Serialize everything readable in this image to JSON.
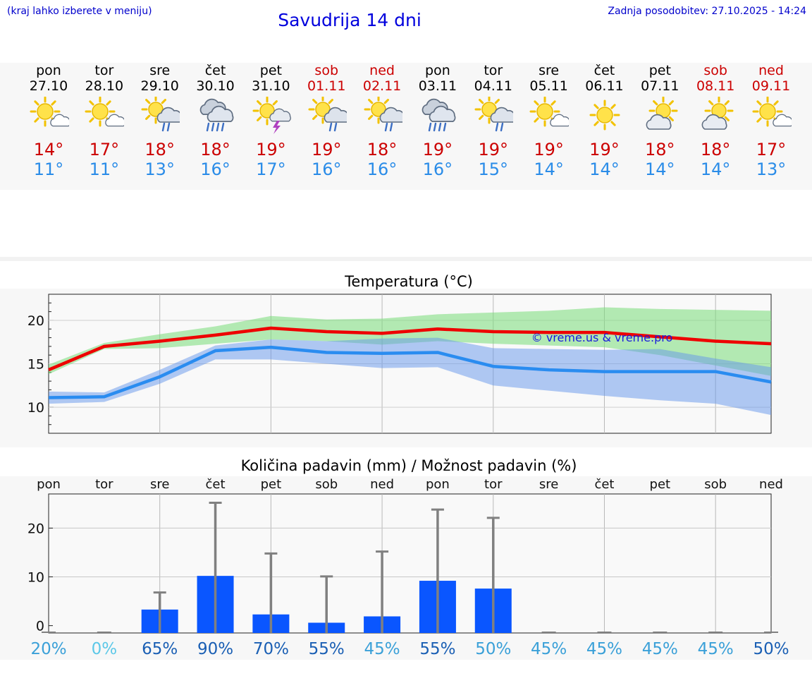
{
  "header": {
    "menu_note": "(kraj lahko izberete v meniju)",
    "title": "Savudrija 14 dni",
    "last_update": "Zadnja posodobitev: 27.10.2025 - 14:24"
  },
  "colors": {
    "max": "#cc0000",
    "min": "#2a8ce8",
    "link": "#0000cc"
  },
  "days": [
    {
      "name": "pon",
      "date": "27.10",
      "icon": "sun-cloud-icon",
      "tmax": "14°",
      "tmin": "11°",
      "weekend": false
    },
    {
      "name": "tor",
      "date": "28.10",
      "icon": "sun-cloud-icon",
      "tmax": "17°",
      "tmin": "11°",
      "weekend": false
    },
    {
      "name": "sre",
      "date": "29.10",
      "icon": "sun-rain-icon",
      "tmax": "18°",
      "tmin": "13°",
      "weekend": false
    },
    {
      "name": "čet",
      "date": "30.10",
      "icon": "rain-cloud-icon",
      "tmax": "18°",
      "tmin": "16°",
      "weekend": false
    },
    {
      "name": "pet",
      "date": "31.10",
      "icon": "sun-thunder-icon",
      "tmax": "19°",
      "tmin": "17°",
      "weekend": false
    },
    {
      "name": "sob",
      "date": "01.11",
      "icon": "sun-rain-icon",
      "tmax": "19°",
      "tmin": "16°",
      "weekend": true
    },
    {
      "name": "ned",
      "date": "02.11",
      "icon": "sun-rain-icon",
      "tmax": "18°",
      "tmin": "16°",
      "weekend": true
    },
    {
      "name": "pon",
      "date": "03.11",
      "icon": "rain-cloud-icon",
      "tmax": "19°",
      "tmin": "16°",
      "weekend": false
    },
    {
      "name": "tor",
      "date": "04.11",
      "icon": "sun-rain-icon",
      "tmax": "19°",
      "tmin": "15°",
      "weekend": false
    },
    {
      "name": "sre",
      "date": "05.11",
      "icon": "sun-cloud-icon",
      "tmax": "19°",
      "tmin": "14°",
      "weekend": false
    },
    {
      "name": "čet",
      "date": "06.11",
      "icon": "sun-icon",
      "tmax": "19°",
      "tmin": "14°",
      "weekend": false
    },
    {
      "name": "pet",
      "date": "07.11",
      "icon": "cloud-sun-icon",
      "tmax": "18°",
      "tmin": "14°",
      "weekend": false
    },
    {
      "name": "sob",
      "date": "08.11",
      "icon": "cloud-sun-icon",
      "tmax": "18°",
      "tmin": "14°",
      "weekend": true
    },
    {
      "name": "ned",
      "date": "09.11",
      "icon": "sun-cloud-icon",
      "tmax": "17°",
      "tmin": "13°",
      "weekend": true
    }
  ],
  "chart_data": [
    {
      "type": "line",
      "title": "Temperatura (°C)",
      "watermark": "© vreme.us & vreme.pro",
      "ylim": [
        7,
        23
      ],
      "yticks": [
        10,
        15,
        20
      ],
      "grid": true,
      "series": [
        {
          "name": "max",
          "color": "#ee0000",
          "values": [
            14.3,
            17.0,
            17.6,
            18.3,
            19.1,
            18.7,
            18.5,
            19.0,
            18.7,
            18.6,
            18.6,
            18.1,
            17.6,
            17.3
          ],
          "band_low": [
            13.8,
            16.7,
            16.8,
            17.3,
            17.8,
            17.6,
            17.2,
            17.6,
            17.3,
            17.1,
            16.9,
            16.0,
            14.8,
            13.6
          ],
          "band_high": [
            14.9,
            17.4,
            18.4,
            19.3,
            20.5,
            20.1,
            20.2,
            20.7,
            20.9,
            21.1,
            21.5,
            21.3,
            21.2,
            21.1
          ]
        },
        {
          "name": "min",
          "color": "#2a8cf0",
          "values": [
            11.1,
            11.2,
            13.5,
            16.5,
            16.9,
            16.3,
            16.2,
            16.3,
            14.7,
            14.3,
            14.1,
            14.1,
            14.1,
            12.9
          ],
          "band_low": [
            10.4,
            10.6,
            12.7,
            15.5,
            15.5,
            15.0,
            14.5,
            14.6,
            12.5,
            11.9,
            11.3,
            10.8,
            10.4,
            9.1
          ],
          "band_high": [
            11.8,
            11.7,
            14.3,
            17.1,
            17.8,
            17.6,
            17.9,
            18.0,
            16.8,
            16.7,
            16.6,
            16.7,
            15.6,
            14.6
          ]
        }
      ]
    },
    {
      "type": "bar",
      "title": "Količina padavin (mm) / Možnost padavin (%)",
      "categories": [
        "pon",
        "tor",
        "sre",
        "čet",
        "pet",
        "sob",
        "ned",
        "pon",
        "tor",
        "sre",
        "čet",
        "pet",
        "sob",
        "ned"
      ],
      "ylim": [
        -1.5,
        27
      ],
      "yticks": [
        0,
        10,
        20
      ],
      "values": [
        0,
        0,
        3.3,
        10.2,
        2.3,
        0.6,
        1.9,
        9.2,
        7.6,
        0,
        0,
        0,
        0,
        0
      ],
      "error_high": [
        0,
        0,
        6.8,
        25.2,
        14.8,
        10.1,
        15.2,
        23.8,
        22.1,
        0,
        0,
        0,
        0,
        0
      ],
      "probability": [
        "20%",
        "0%",
        "65%",
        "90%",
        "70%",
        "55%",
        "45%",
        "55%",
        "50%",
        "45%",
        "45%",
        "45%",
        "45%",
        "50%"
      ],
      "probability_colors": [
        "#3aa0d8",
        "#5cc8e8",
        "#1a5fb4",
        "#1a5fb4",
        "#1a5fb4",
        "#1a5fb4",
        "#3aa0d8",
        "#1a5fb4",
        "#3aa0d8",
        "#3aa0d8",
        "#3aa0d8",
        "#3aa0d8",
        "#3aa0d8",
        "#1a5fb4"
      ]
    }
  ]
}
